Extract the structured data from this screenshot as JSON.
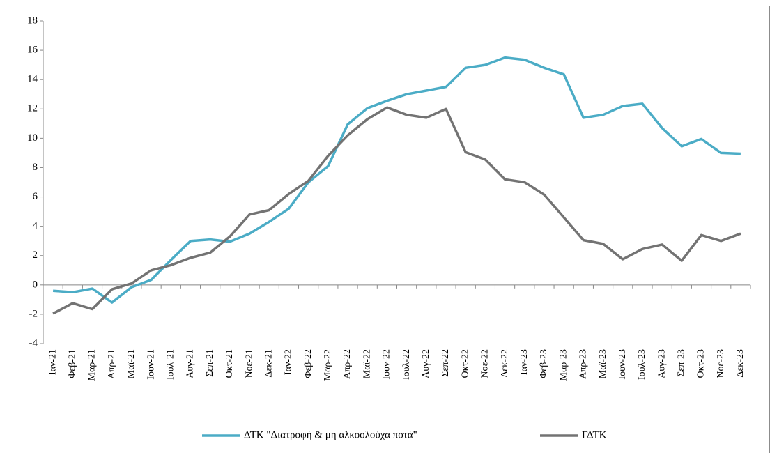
{
  "chart_data": {
    "type": "line",
    "categories": [
      "Ιαν-21",
      "Φεβ-21",
      "Μαρ-21",
      "Απρ-21",
      "Μαϊ-21",
      "Ιουν-21",
      "Ιουλ-21",
      "Αυγ-21",
      "Σεπ-21",
      "Οκτ-21",
      "Νοε-21",
      "Δεκ-21",
      "Ιαν-22",
      "Φεβ-22",
      "Μαρ-22",
      "Απρ-22",
      "Μαϊ-22",
      "Ιουν-22",
      "Ιουλ-22",
      "Αυγ-22",
      "Σεπ-22",
      "Οκτ-22",
      "Νοε-22",
      "Δεκ-22",
      "Ιαν-23",
      "Φεβ-23",
      "Μαρ-23",
      "Απρ-23",
      "Μαϊ-23",
      "Ιουν-23",
      "Ιουλ-23",
      "Αυγ-23",
      "Σεπ-23",
      "Οκτ-23",
      "Νοε-23",
      "Δεκ-23"
    ],
    "series": [
      {
        "name": "ΔΤΚ \"Διατροφή & μη αλκοολούχα ποτά\"",
        "color": "#4bacc6",
        "values": [
          -0.4,
          -0.5,
          -0.25,
          -1.2,
          -0.15,
          0.35,
          1.7,
          3.0,
          3.1,
          2.95,
          3.5,
          4.3,
          5.2,
          7.0,
          8.1,
          10.95,
          12.05,
          12.55,
          13.0,
          13.25,
          13.5,
          14.8,
          15.0,
          15.5,
          15.35,
          14.8,
          14.35,
          11.4,
          11.6,
          12.2,
          12.35,
          10.7,
          9.45,
          9.95,
          9.0,
          8.95
        ]
      },
      {
        "name": "ΓΔΤΚ",
        "color": "#737373",
        "values": [
          -1.95,
          -1.25,
          -1.65,
          -0.3,
          0.1,
          1.0,
          1.35,
          1.85,
          2.2,
          3.3,
          4.8,
          5.1,
          6.2,
          7.1,
          8.8,
          10.2,
          11.3,
          12.1,
          11.6,
          11.4,
          12.0,
          9.05,
          8.55,
          7.2,
          7.0,
          6.15,
          4.6,
          3.05,
          2.8,
          1.75,
          2.45,
          2.75,
          1.65,
          3.4,
          3.0,
          3.5
        ]
      }
    ],
    "ylim": [
      -4,
      18
    ],
    "yticks": [
      -4,
      -2,
      0,
      2,
      4,
      6,
      8,
      10,
      12,
      14,
      16,
      18
    ],
    "grid": false,
    "legend": "bottom"
  }
}
